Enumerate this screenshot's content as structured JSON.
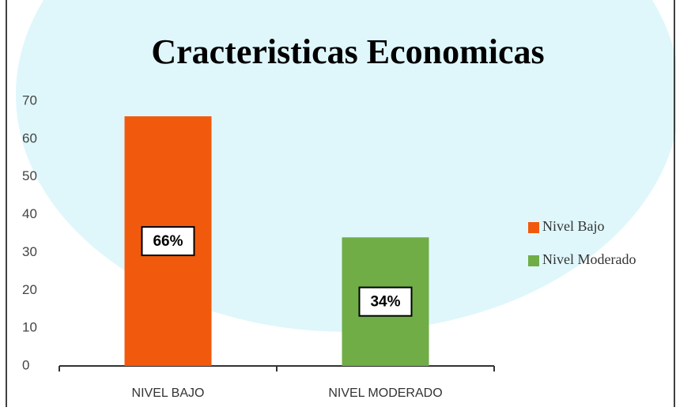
{
  "chart_data": {
    "type": "bar",
    "title": "Cracteristicas Economicas",
    "categories": [
      "NIVEL BAJO",
      "NIVEL MODERADO"
    ],
    "series": [
      {
        "name": "Nivel Bajo",
        "color": "#f15a0c",
        "values": [
          66,
          null
        ],
        "value_labels": [
          "66%",
          null
        ]
      },
      {
        "name": "Nivel Moderado",
        "color": "#70ad47",
        "values": [
          null,
          34
        ],
        "value_labels": [
          null,
          "34%"
        ]
      }
    ],
    "ylim": [
      0,
      70
    ],
    "yticks": [
      0,
      10,
      20,
      30,
      40,
      50,
      60,
      70
    ],
    "grid": false,
    "legend": "right"
  }
}
